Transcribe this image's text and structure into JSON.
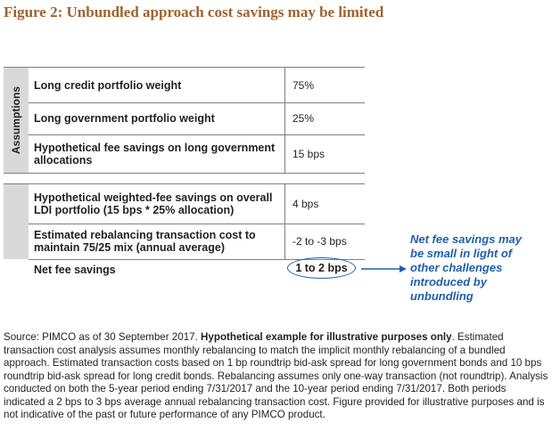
{
  "figure": {
    "title": "Figure 2: Unbundled approach cost savings may be limited"
  },
  "table": {
    "side_label": "Assumptions",
    "assumption_rows": [
      {
        "label": "Long credit portfolio weight",
        "value": "75%"
      },
      {
        "label": "Long government portfolio weight",
        "value": "25%"
      },
      {
        "label": "Hypothetical fee savings on long government allocations",
        "value": "15 bps"
      }
    ],
    "result_rows": [
      {
        "label": "Hypothetical weighted-fee savings on overall LDI portfolio (15 bps * 25% allocation)",
        "value": "4 bps"
      },
      {
        "label": "Estimated rebalancing transaction cost to maintain 75/25 mix (annual average)",
        "value": "-2 to -3 bps"
      }
    ],
    "net_row": {
      "label": "Net fee savings",
      "value": "1 to 2 bps"
    }
  },
  "callout": {
    "lines": [
      "Net fee savings may",
      "be small in light of",
      "other challenges",
      "introduced by",
      "unbundling"
    ]
  },
  "source": {
    "lead": "Source: PIMCO as of 30 September 2017. ",
    "bold": "Hypothetical example for illustrative purposes only",
    "rest": ". Estimated transaction cost analysis assumes monthly rebalancing to match the implicit monthly rebalancing of a bundled approach. Estimated transaction costs based on 1 bp roundtrip bid-ask spread for long government bonds and 10 bps roundtrip bid-ask spread for long credit bonds. Rebalancing assumes only one-way transaction (not roundtrip). Analysis conducted on both the 5-year period ending 7/31/2017 and the 10-year period ending 7/31/2017. Both periods indicated a 2 bps to 3 bps average annual rebalancing transaction cost. Figure provided for illustrative purposes and is not indicative of the past or future performance of any PIMCO product."
  },
  "colors": {
    "title": "#a0622d",
    "callout": "#1f5fa8",
    "side_band": "#d9d9d9"
  }
}
